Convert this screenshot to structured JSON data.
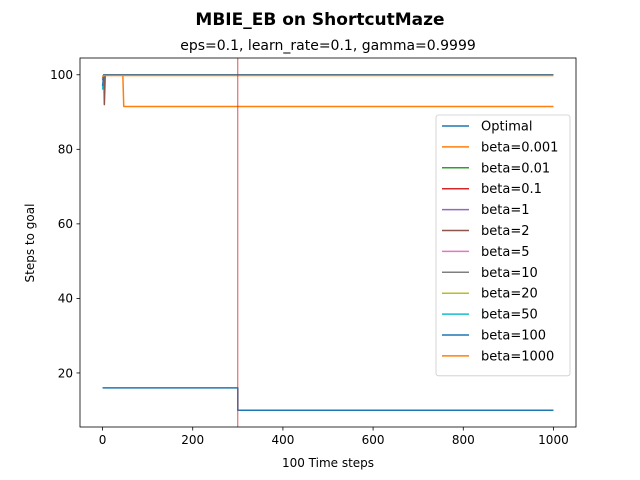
{
  "chart_data": {
    "type": "line",
    "title": "MBIE_EB on ShortcutMaze",
    "subtitle": "eps=0.1, learn_rate=0.1, gamma=0.9999",
    "xlabel": "100 Time steps",
    "ylabel": "Steps to goal",
    "xlim": [
      -50,
      1050
    ],
    "ylim": [
      5.5,
      104.5
    ],
    "xticks": [
      0,
      200,
      400,
      600,
      800,
      1000
    ],
    "yticks": [
      20,
      40,
      60,
      80,
      100
    ],
    "grid": false,
    "legend_position": "center-right",
    "vline": {
      "x": 300,
      "color": "#d62728"
    },
    "series": [
      {
        "name": "Optimal",
        "color": "#1f77b4",
        "points": [
          [
            0,
            16
          ],
          [
            300,
            16
          ],
          [
            300,
            10
          ],
          [
            1000,
            10
          ]
        ]
      },
      {
        "name": "beta=0.001",
        "color": "#ff7f0e",
        "points": [
          [
            0,
            99.5
          ],
          [
            3,
            100
          ],
          [
            45,
            100
          ],
          [
            47,
            91.5
          ],
          [
            1000,
            91.5
          ]
        ]
      },
      {
        "name": "beta=0.01",
        "color": "#2ca02c",
        "points": [
          [
            0,
            99.5
          ],
          [
            4,
            100
          ],
          [
            1000,
            100
          ]
        ]
      },
      {
        "name": "beta=0.1",
        "color": "#d62728",
        "points": [
          [
            0,
            98.5
          ],
          [
            4,
            100
          ],
          [
            1000,
            100
          ]
        ]
      },
      {
        "name": "beta=1",
        "color": "#9467bd",
        "points": [
          [
            0,
            99
          ],
          [
            4,
            100
          ],
          [
            1000,
            100
          ]
        ]
      },
      {
        "name": "beta=2",
        "color": "#8c564b",
        "points": [
          [
            0,
            99
          ],
          [
            3,
            100
          ],
          [
            4,
            92
          ],
          [
            6,
            100
          ],
          [
            1000,
            100
          ]
        ]
      },
      {
        "name": "beta=5",
        "color": "#e377c2",
        "points": [
          [
            0,
            99
          ],
          [
            4,
            100
          ],
          [
            1000,
            100
          ]
        ]
      },
      {
        "name": "beta=10",
        "color": "#7f7f7f",
        "points": [
          [
            0,
            99
          ],
          [
            4,
            100
          ],
          [
            1000,
            100
          ]
        ]
      },
      {
        "name": "beta=20",
        "color": "#bcbd22",
        "points": [
          [
            0,
            99.5
          ],
          [
            4,
            100
          ],
          [
            1000,
            100
          ]
        ]
      },
      {
        "name": "beta=50",
        "color": "#17becf",
        "points": [
          [
            0,
            96
          ],
          [
            3,
            100
          ],
          [
            1000,
            100
          ]
        ]
      },
      {
        "name": "beta=100",
        "color": "#1f77b4",
        "points": [
          [
            0,
            97
          ],
          [
            3,
            100
          ],
          [
            1000,
            100
          ]
        ]
      },
      {
        "name": "beta=1000",
        "color": "#ff7f0e",
        "points": [
          [
            0,
            99.5
          ],
          [
            4,
            99.8
          ],
          [
            1000,
            99.8
          ]
        ]
      }
    ]
  }
}
